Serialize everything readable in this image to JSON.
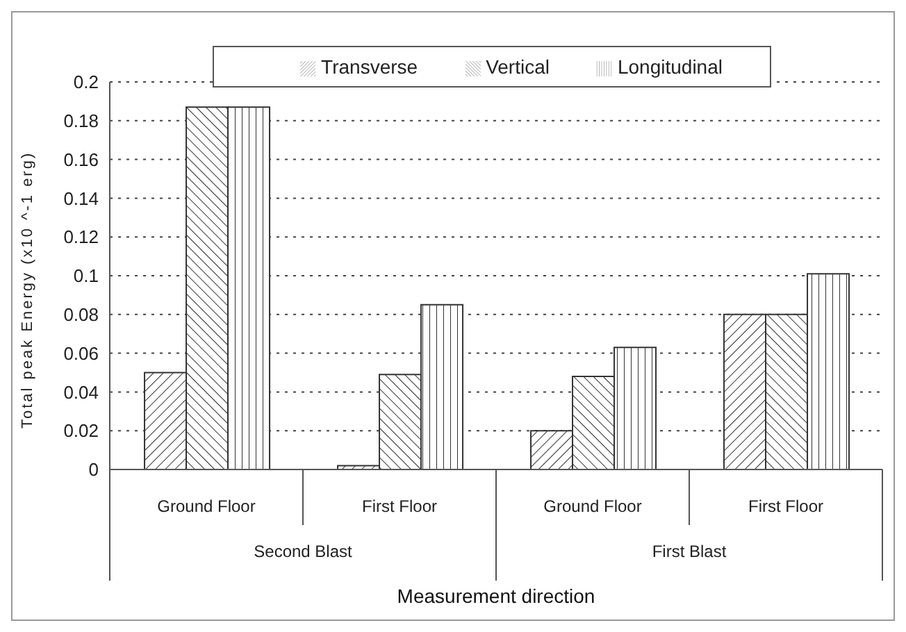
{
  "chart_data": {
    "type": "bar",
    "xlabel": "Measurement direction",
    "ylabel": "Total peak Energy (x10 ^-1 erg)",
    "categories": [
      "Ground Floor",
      "First Floor",
      "Ground Floor",
      "First Floor"
    ],
    "annotations": [
      "Second Blast",
      "First Blast"
    ],
    "series": [
      {
        "name": "Transverse",
        "color": "#333333",
        "values": [
          0.05,
          0.002,
          0.02,
          0.08
        ]
      },
      {
        "name": "Vertical",
        "color": "#333333",
        "values": [
          0.187,
          0.049,
          0.048,
          0.08
        ]
      },
      {
        "name": "Longitudinal",
        "color": "#333333",
        "values": [
          0.187,
          0.085,
          0.063,
          0.101
        ]
      }
    ],
    "ylim": [
      0,
      0.2
    ],
    "yticks": [
      0,
      0.02,
      0.04,
      0.06,
      0.08,
      0.1,
      0.12,
      0.14,
      0.16,
      0.18,
      0.2
    ],
    "grid": "y",
    "legend": "top right"
  }
}
